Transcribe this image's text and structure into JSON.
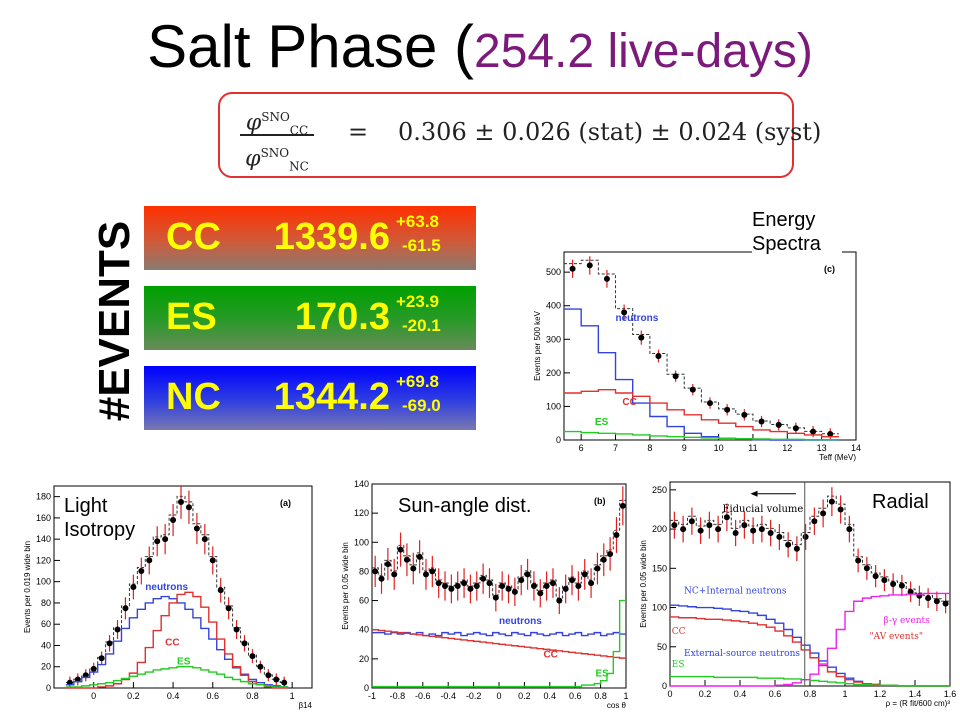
{
  "title": {
    "part1": "Salt Phase (",
    "part2": "254.2 live-days)"
  },
  "formula": {
    "num_sym": "φ",
    "num_sup": "SNO",
    "num_sub": "CC",
    "den_sym": "φ",
    "den_sup": "SNO",
    "den_sub": "NC",
    "eq": "=",
    "rhs": "0.306 ± 0.026 (stat) ± 0.024 (syst)"
  },
  "events_label": "#EVENTS",
  "events": [
    {
      "label": "CC",
      "value": "1339.6",
      "plus": "+63.8",
      "minus": "-61.5"
    },
    {
      "label": "ES",
      "value": "170.3",
      "plus": "+23.9",
      "minus": "-20.1"
    },
    {
      "label": "NC",
      "value": "1344.2",
      "plus": "+69.8",
      "minus": "-69.0"
    }
  ],
  "chart_data": [
    {
      "type": "line",
      "panel": "energy",
      "caption": "Energy Spectra",
      "tag": "(c)",
      "xlabel": "Teff (MeV)",
      "ylabel": "Events per 500 keV",
      "xlim": [
        5.5,
        14
      ],
      "ylim": [
        0,
        560
      ],
      "xticks": [
        6,
        7,
        8,
        9,
        10,
        11,
        12,
        13,
        14
      ],
      "yticks": [
        0,
        100,
        200,
        300,
        400,
        500
      ],
      "x": [
        5.75,
        6.25,
        6.75,
        7.25,
        7.75,
        8.25,
        8.75,
        9.25,
        9.75,
        10.25,
        10.75,
        11.25,
        11.75,
        12.25,
        12.75,
        13.25
      ],
      "series": [
        {
          "name": "data",
          "color": "#000000",
          "values": [
            510,
            520,
            480,
            380,
            305,
            250,
            190,
            150,
            110,
            90,
            75,
            55,
            45,
            35,
            25,
            18
          ]
        },
        {
          "name": "neutrons",
          "color": "#3344dd",
          "values": [
            390,
            340,
            260,
            180,
            110,
            70,
            40,
            20,
            10,
            5,
            2,
            1,
            0,
            0,
            0,
            0
          ]
        },
        {
          "name": "CC",
          "color": "#e03030",
          "values": [
            140,
            145,
            150,
            140,
            130,
            110,
            90,
            75,
            60,
            50,
            40,
            30,
            25,
            20,
            15,
            10
          ]
        },
        {
          "name": "ES",
          "color": "#22cc22",
          "values": [
            25,
            22,
            20,
            18,
            15,
            12,
            10,
            8,
            6,
            5,
            4,
            3,
            2,
            2,
            1,
            1
          ]
        }
      ]
    },
    {
      "type": "line",
      "panel": "isotropy",
      "caption": "Light Isotropy",
      "tag": "(a)",
      "xlabel": "β14",
      "ylabel": "Events per 0.019 wide bin",
      "xlim": [
        -0.2,
        1.1
      ],
      "ylim": [
        0,
        190
      ],
      "xticks": [
        0,
        0.2,
        0.4,
        0.6,
        0.8,
        1
      ],
      "yticks": [
        0,
        20,
        40,
        60,
        80,
        100,
        120,
        140,
        160,
        180
      ],
      "x": [
        -0.12,
        -0.08,
        -0.04,
        0.0,
        0.04,
        0.08,
        0.12,
        0.16,
        0.2,
        0.24,
        0.28,
        0.32,
        0.36,
        0.4,
        0.44,
        0.48,
        0.52,
        0.56,
        0.6,
        0.64,
        0.68,
        0.72,
        0.76,
        0.8,
        0.84,
        0.88,
        0.92,
        0.96
      ],
      "series": [
        {
          "name": "data",
          "color": "#000000",
          "values": [
            5,
            8,
            12,
            18,
            28,
            42,
            55,
            75,
            95,
            110,
            120,
            138,
            140,
            158,
            175,
            170,
            150,
            140,
            120,
            92,
            75,
            55,
            42,
            30,
            20,
            12,
            8,
            5
          ]
        },
        {
          "name": "neutrons",
          "color": "#3344dd",
          "values": [
            3,
            6,
            10,
            15,
            22,
            32,
            44,
            56,
            66,
            74,
            80,
            84,
            86,
            84,
            80,
            74,
            66,
            56,
            46,
            36,
            27,
            19,
            13,
            8,
            5,
            3,
            2,
            1
          ]
        },
        {
          "name": "CC",
          "color": "#e03030",
          "values": [
            0,
            0,
            0,
            0,
            1,
            2,
            4,
            8,
            14,
            24,
            38,
            54,
            68,
            80,
            88,
            90,
            86,
            76,
            62,
            46,
            32,
            20,
            12,
            6,
            3,
            1,
            0,
            0
          ]
        },
        {
          "name": "ES",
          "color": "#22cc22",
          "values": [
            1,
            1,
            2,
            3,
            4,
            5,
            7,
            9,
            11,
            13,
            15,
            17,
            18,
            19,
            20,
            20,
            19,
            17,
            15,
            13,
            10,
            8,
            6,
            4,
            3,
            2,
            1,
            1
          ]
        }
      ]
    },
    {
      "type": "line",
      "panel": "sun",
      "caption": "Sun-angle dist.",
      "tag": "(b)",
      "xlabel": "cos θ",
      "ylabel": "Events per 0.05 wide bin",
      "xlim": [
        -1,
        1
      ],
      "ylim": [
        0,
        140
      ],
      "xticks": [
        -1,
        -0.8,
        -0.6,
        -0.4,
        -0.2,
        0,
        0.2,
        0.4,
        0.6,
        0.8,
        1
      ],
      "yticks": [
        0,
        20,
        40,
        60,
        80,
        100,
        120,
        140
      ],
      "x": [
        -0.975,
        -0.925,
        -0.875,
        -0.825,
        -0.775,
        -0.725,
        -0.675,
        -0.625,
        -0.575,
        -0.525,
        -0.475,
        -0.425,
        -0.375,
        -0.325,
        -0.275,
        -0.225,
        -0.175,
        -0.125,
        -0.075,
        -0.025,
        0.025,
        0.075,
        0.125,
        0.175,
        0.225,
        0.275,
        0.325,
        0.375,
        0.425,
        0.475,
        0.525,
        0.575,
        0.625,
        0.675,
        0.725,
        0.775,
        0.825,
        0.875,
        0.925,
        0.975
      ],
      "series": [
        {
          "name": "data",
          "color": "#000000",
          "values": [
            80,
            75,
            85,
            78,
            95,
            88,
            82,
            90,
            78,
            80,
            72,
            70,
            68,
            70,
            72,
            68,
            70,
            75,
            72,
            62,
            70,
            68,
            66,
            74,
            78,
            70,
            65,
            70,
            72,
            60,
            68,
            74,
            70,
            78,
            72,
            82,
            88,
            92,
            105,
            125
          ]
        },
        {
          "name": "neutrons",
          "color": "#3344dd",
          "values": [
            38,
            38,
            37,
            38,
            37,
            38,
            37,
            38,
            36,
            37,
            36,
            38,
            37,
            38,
            36,
            37,
            38,
            37,
            36,
            38,
            37,
            36,
            38,
            37,
            36,
            38,
            37,
            36,
            37,
            38,
            36,
            37,
            38,
            36,
            37,
            38,
            36,
            37,
            38,
            37
          ]
        },
        {
          "name": "CC",
          "color": "#e03030",
          "values": [
            40,
            39.5,
            39,
            38.5,
            38,
            37.5,
            37,
            36.5,
            36,
            35.5,
            35,
            34.5,
            34,
            33.5,
            33,
            32.5,
            32,
            31.5,
            31,
            30.5,
            30,
            29.5,
            29,
            28.5,
            28,
            27.5,
            27,
            26.5,
            26,
            25.5,
            25,
            24.5,
            24,
            23.5,
            23,
            22.5,
            22,
            21.5,
            21,
            20.5
          ]
        },
        {
          "name": "ES",
          "color": "#22cc22",
          "values": [
            1,
            1,
            1,
            1,
            1,
            1,
            1,
            1,
            1,
            1,
            1,
            1,
            1,
            1,
            1,
            1,
            1,
            1,
            1,
            1,
            1,
            1,
            1,
            1,
            1,
            1,
            1,
            1,
            1,
            1,
            1,
            1,
            1,
            2,
            2,
            3,
            5,
            10,
            25,
            60
          ]
        }
      ]
    },
    {
      "type": "line",
      "panel": "radial",
      "caption": "Radial",
      "xlabel": "ρ = (R fit/600 cm)³",
      "ylabel": "Events per 0.05 wide bin",
      "xlim": [
        0,
        1.6
      ],
      "ylim": [
        0,
        260
      ],
      "xticks": [
        0,
        0.2,
        0.4,
        0.6,
        0.8,
        1,
        1.2,
        1.4,
        1.6
      ],
      "yticks": [
        0,
        50,
        100,
        150,
        200,
        250
      ],
      "fiducial_x": 0.77,
      "annotations": {
        "fiducial": "Fiducial volume",
        "nc": "NC+Internal neutrons",
        "beta": "β-γ events",
        "av": "\"AV events\"",
        "ext": "External-source neutrons",
        "cc": "CC",
        "es": "ES"
      },
      "x": [
        0.025,
        0.075,
        0.125,
        0.175,
        0.225,
        0.275,
        0.325,
        0.375,
        0.425,
        0.475,
        0.525,
        0.575,
        0.625,
        0.675,
        0.725,
        0.775,
        0.825,
        0.875,
        0.925,
        0.975,
        1.025,
        1.075,
        1.125,
        1.175,
        1.225,
        1.275,
        1.325,
        1.375,
        1.425,
        1.475,
        1.525,
        1.575
      ],
      "series": [
        {
          "name": "data",
          "color": "#000000",
          "values": [
            205,
            200,
            210,
            198,
            205,
            200,
            215,
            195,
            205,
            198,
            200,
            195,
            190,
            180,
            175,
            190,
            210,
            220,
            235,
            225,
            200,
            160,
            150,
            140,
            135,
            130,
            128,
            120,
            115,
            112,
            108,
            105
          ]
        },
        {
          "name": "NC+Internal neutrons",
          "color": "#3344dd",
          "values": [
            103,
            102,
            101,
            100,
            100,
            99,
            98,
            96,
            95,
            93,
            90,
            85,
            80,
            72,
            62,
            52,
            42,
            32,
            24,
            16,
            10,
            6,
            3,
            2,
            1,
            1,
            0,
            0,
            0,
            0,
            0,
            0
          ]
        },
        {
          "name": "CC",
          "color": "#e03030",
          "values": [
            88,
            87,
            87,
            86,
            85,
            85,
            84,
            83,
            82,
            80,
            78,
            75,
            70,
            64,
            56,
            46,
            36,
            26,
            18,
            12,
            8,
            5,
            3,
            2,
            1,
            1,
            0,
            0,
            0,
            0,
            0,
            0
          ]
        },
        {
          "name": "ES",
          "color": "#22cc22",
          "values": [
            12,
            12,
            12,
            12,
            12,
            11,
            11,
            11,
            11,
            11,
            10,
            10,
            10,
            9,
            9,
            8,
            7,
            6,
            5,
            4,
            3,
            2,
            2,
            1,
            1,
            1,
            0,
            0,
            0,
            0,
            0,
            0
          ]
        },
        {
          "name": "β-γ events",
          "color": "#ee22ee",
          "values": [
            0,
            0,
            0,
            0,
            0,
            0,
            0,
            0,
            0,
            0,
            0,
            0,
            1,
            2,
            4,
            8,
            15,
            28,
            48,
            72,
            95,
            108,
            112,
            114,
            115,
            116,
            116,
            117,
            117,
            118,
            118,
            118
          ]
        }
      ]
    }
  ]
}
